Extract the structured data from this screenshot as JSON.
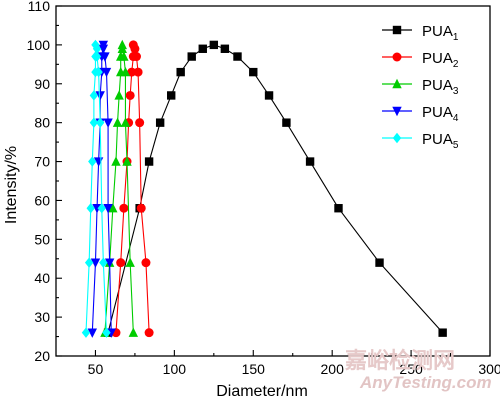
{
  "chart_data": {
    "type": "line",
    "xlabel": "Diameter/nm",
    "ylabel": "Intensity/%",
    "xlim": [
      25,
      300
    ],
    "ylim": [
      20,
      110
    ],
    "xticks": [
      50,
      100,
      150,
      200,
      250,
      300
    ],
    "yticks": [
      20,
      30,
      40,
      50,
      60,
      70,
      80,
      90,
      100,
      110
    ],
    "grid": false,
    "legend_position": "top-right",
    "series": [
      {
        "name": "PUA",
        "subscript": "1",
        "color": "#000000",
        "marker": "square",
        "x": [
          58,
          78,
          84,
          91,
          98,
          104,
          111,
          118,
          125,
          132,
          140,
          150,
          160,
          171,
          186,
          204,
          230,
          270
        ],
        "y": [
          26,
          58,
          70,
          80,
          87,
          93,
          97,
          99,
          100,
          99,
          97,
          93,
          87,
          80,
          70,
          58,
          44,
          26
        ]
      },
      {
        "name": "PUA",
        "subscript": "2",
        "color": "#ff0000",
        "marker": "circle",
        "x": [
          63,
          66,
          68,
          70,
          71,
          72,
          73,
          74,
          74,
          75,
          76,
          77,
          78,
          79,
          82,
          84
        ],
        "y": [
          26,
          44,
          58,
          70,
          80,
          87,
          93,
          97,
          100,
          99,
          97,
          93,
          80,
          58,
          44,
          26
        ]
      },
      {
        "name": "PUA",
        "subscript": "3",
        "color": "#00cc00",
        "marker": "triangle-up",
        "x": [
          56,
          59,
          61,
          63,
          64,
          65,
          66,
          66,
          67,
          67,
          68,
          69,
          69,
          70,
          72,
          74
        ],
        "y": [
          26,
          44,
          58,
          70,
          80,
          87,
          93,
          97,
          100,
          99,
          97,
          93,
          80,
          70,
          44,
          26
        ]
      },
      {
        "name": "PUA",
        "subscript": "4",
        "color": "#0000ff",
        "marker": "triangle-down",
        "x": [
          48,
          50,
          51,
          52,
          53,
          53,
          54,
          54,
          55,
          55,
          56,
          57,
          58,
          58,
          59,
          60
        ],
        "y": [
          26,
          44,
          58,
          70,
          80,
          87,
          93,
          97,
          100,
          99,
          97,
          93,
          80,
          58,
          44,
          26
        ]
      },
      {
        "name": "PUA",
        "subscript": "5",
        "color": "#00ffff",
        "marker": "diamond",
        "x": [
          44,
          46,
          47,
          48,
          49,
          49,
          50,
          50,
          50,
          51,
          51,
          52,
          53,
          54,
          55,
          57
        ],
        "y": [
          26,
          44,
          58,
          70,
          80,
          87,
          93,
          97,
          100,
          99,
          97,
          93,
          80,
          58,
          44,
          26
        ]
      }
    ]
  },
  "watermark": {
    "cn": "嘉峪检测网",
    "en": "AnyTesting.com"
  }
}
